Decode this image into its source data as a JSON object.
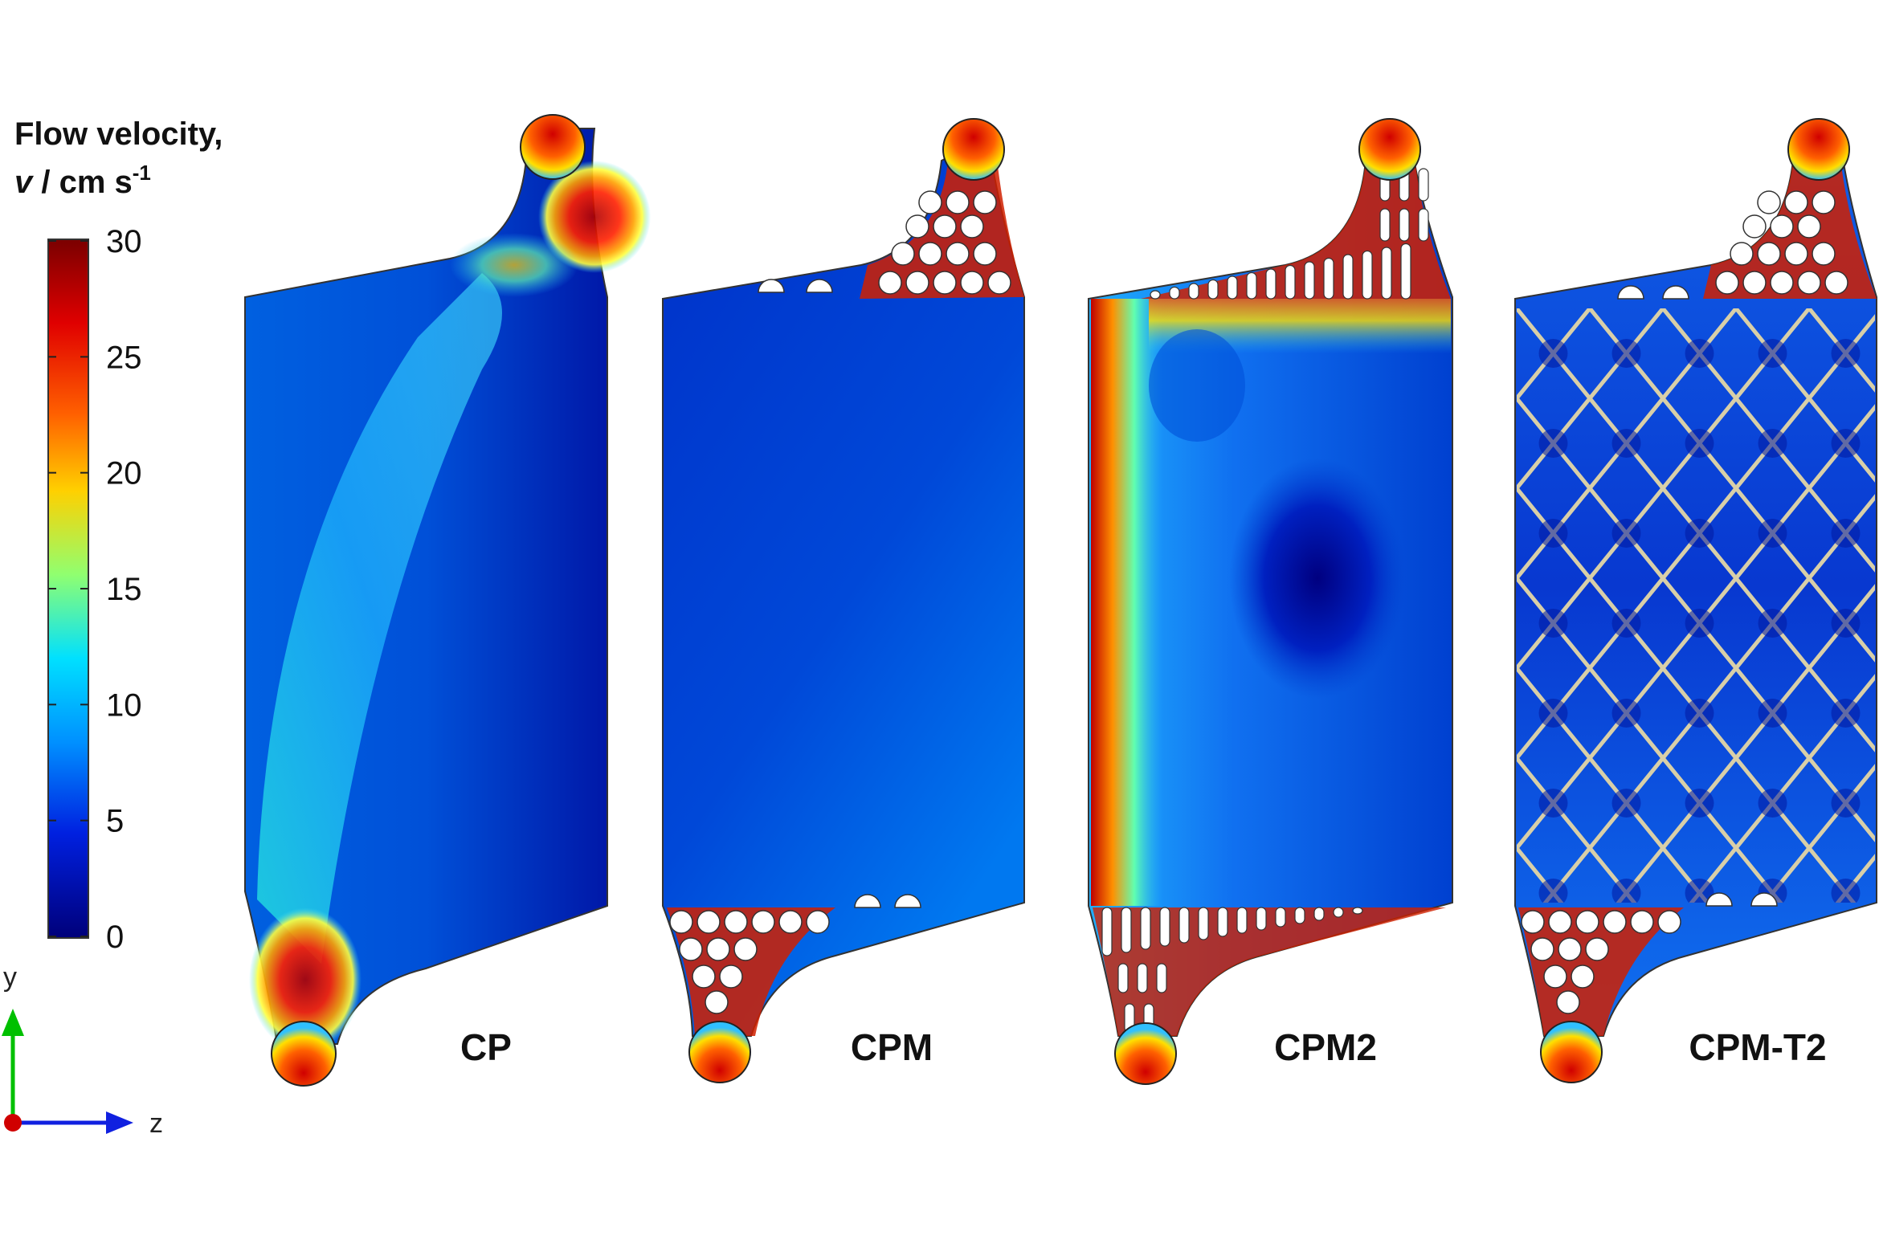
{
  "legend": {
    "title_line1": "Flow velocity,",
    "title_symbol": "v",
    "title_unit": " / cm s",
    "title_exp": "-1",
    "ticks": [
      "30",
      "25",
      "20",
      "15",
      "10",
      "5",
      "0"
    ],
    "range": [
      0,
      30
    ],
    "colormap": [
      "#800000",
      "#ff0000",
      "#ff8000",
      "#ffff00",
      "#00ffff",
      "#0080ff",
      "#0000ff",
      "#000080"
    ]
  },
  "axes": {
    "y_label": "y",
    "z_label": "z",
    "y_color": "#00c000",
    "z_color": "#1020e0",
    "origin_color": "#d00000"
  },
  "panels": [
    {
      "id": "cp",
      "label": "CP",
      "design": "plain"
    },
    {
      "id": "cpm",
      "label": "CPM",
      "design": "manifold-pins"
    },
    {
      "id": "cpm2",
      "label": "CPM2",
      "design": "manifold-slots"
    },
    {
      "id": "cpm-t2",
      "label": "CPM-T2",
      "design": "manifold-pins-turbulence-promoter"
    }
  ]
}
